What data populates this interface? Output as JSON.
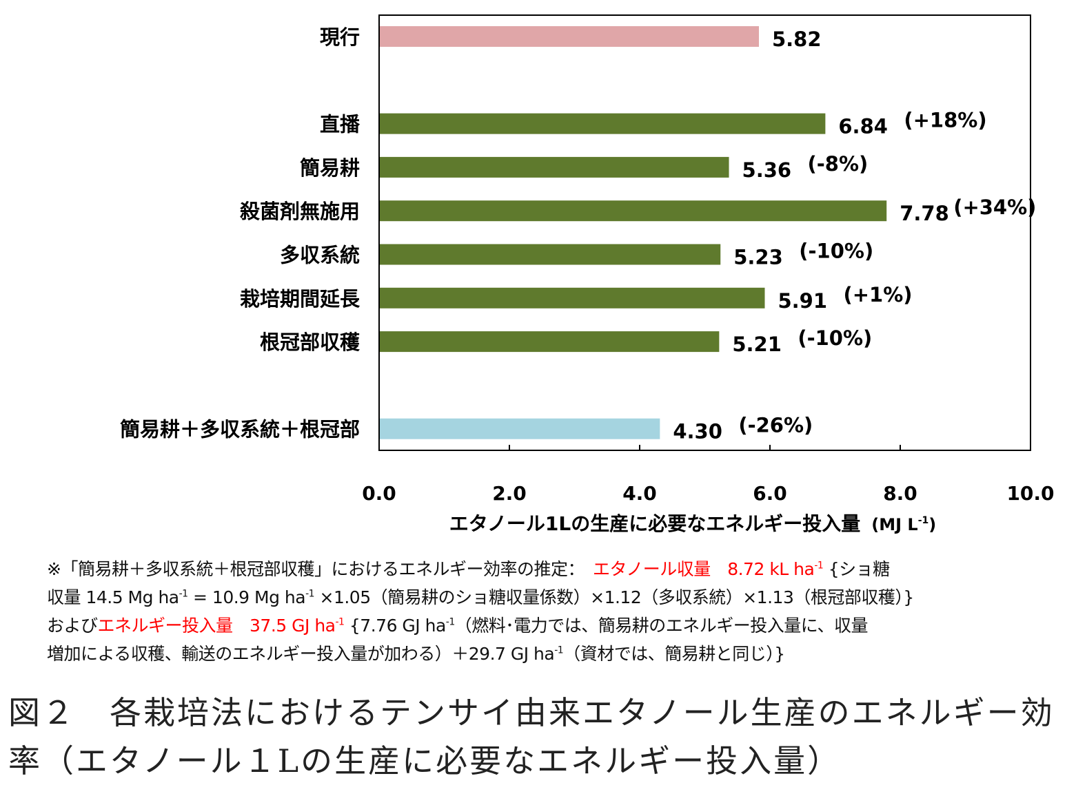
{
  "chart_data": {
    "type": "bar",
    "orientation": "horizontal",
    "categories": [
      "現行",
      "直播",
      "簡易耕",
      "殺菌剤無施用",
      "多収系統",
      "栽培期間延長",
      "根冠部収穫",
      "簡易耕＋多収系統＋根冠部"
    ],
    "values": [
      5.82,
      6.84,
      5.36,
      7.78,
      5.23,
      5.91,
      5.21,
      4.3
    ],
    "value_labels": [
      "5.82",
      "6.84",
      "5.36",
      "7.78",
      "5.23",
      "5.91",
      "5.21",
      "4.30"
    ],
    "change_labels": [
      "",
      "(+18%)",
      "(-8%)",
      "(+34%)",
      "(-10%)",
      "(+1%)",
      "(-10%)",
      "(-26%)"
    ],
    "slots": [
      0,
      2,
      3,
      4,
      5,
      6,
      7,
      9
    ],
    "bar_colors": [
      "#e0a6a8",
      "#5f7a2d",
      "#5f7a2d",
      "#5f7a2d",
      "#5f7a2d",
      "#5f7a2d",
      "#5f7a2d",
      "#a5d4e0"
    ],
    "xlim": [
      0,
      10
    ],
    "xticks": [
      "0.0",
      "2.0",
      "4.0",
      "6.0",
      "8.0",
      "10.0"
    ],
    "xtick_values": [
      0,
      2,
      4,
      6,
      8,
      10
    ],
    "xlabel": "エタノール1Lの生産に必要なエネルギー投入量",
    "xlabel_unit": "(MJ L",
    "xlabel_unit_sup": "-1",
    "xlabel_unit_end": ")",
    "grid": false,
    "legend": "none"
  },
  "note": [
    [
      {
        "t": "※「簡易耕＋多収系統＋根冠部収穫」におけるエネルギー効率の推定：　"
      },
      {
        "t": "エタノール収量　8.72 kL ha",
        "red": true
      },
      {
        "t": "-1",
        "red": true,
        "sup": true
      },
      {
        "t": " {ショ糖"
      }
    ],
    [
      {
        "t": "収量 14.5 Mg ha"
      },
      {
        "t": "-1",
        "sup": true
      },
      {
        "t": " = 10.9 Mg ha"
      },
      {
        "t": "-1",
        "sup": true
      },
      {
        "t": " ×1.05（簡易耕のショ糖収量係数）×1.12（多収系統）×1.13（根冠部収穫）}"
      }
    ],
    [
      {
        "t": "および"
      },
      {
        "t": "エネルギー投入量　37.5 GJ ha",
        "red": true
      },
      {
        "t": "-1",
        "red": true,
        "sup": true
      },
      {
        "t": " {7.76 GJ ha"
      },
      {
        "t": "-1",
        "sup": true
      },
      {
        "t": "（燃料･電力では、簡易耕のエネルギー投入量に、収量"
      }
    ],
    [
      {
        "t": "増加による収穫、輸送のエネルギー投入量が加わる）＋29.7 GJ ha"
      },
      {
        "t": "-1",
        "sup": true
      },
      {
        "t": "（資材では、簡易耕と同じ）}"
      }
    ]
  ],
  "caption": "図２　各栽培法におけるテンサイ由来エタノール生産のエネルギー効率（エタノール１Lの生産に必要なエネルギー投入量）"
}
